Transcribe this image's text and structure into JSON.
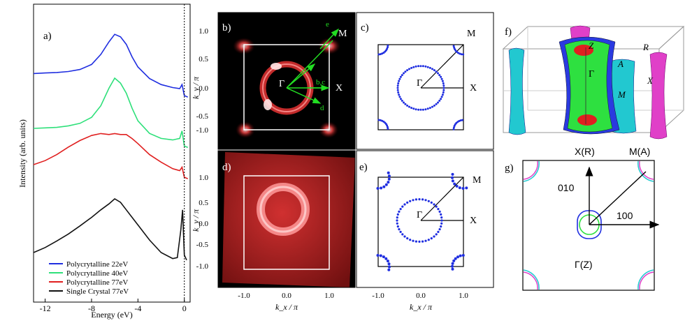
{
  "figure": {
    "panels": {
      "a": "a)",
      "b": "b)",
      "c": "c)",
      "d": "d)",
      "e": "e)",
      "f": "f)",
      "g": "g)"
    }
  },
  "chart_data": [
    {
      "type": "line",
      "panel": "a",
      "xlabel": "Energy (eV)",
      "ylabel": "Intensity (arb. units)",
      "xlim": [
        -13,
        0.5
      ],
      "xticks": [
        "-12",
        "-8",
        "-4",
        "0"
      ],
      "xtick_values": [
        -12,
        -8,
        -4,
        0
      ],
      "fermi_level": 0,
      "series": [
        {
          "name": "Polycrytalline 22eV",
          "color": "#1f2ee0",
          "offset": 3,
          "x": [
            -13,
            -12,
            -11,
            -10,
            -9,
            -8,
            -7.2,
            -6.5,
            -6.0,
            -5.5,
            -5.0,
            -4.5,
            -4.0,
            -3.0,
            -2.0,
            -1.0,
            -0.4,
            -0.2,
            0,
            0.3
          ],
          "y": [
            0.62,
            0.63,
            0.64,
            0.66,
            0.7,
            0.8,
            1.0,
            1.25,
            1.4,
            1.35,
            1.2,
            0.95,
            0.75,
            0.52,
            0.4,
            0.34,
            0.32,
            0.4,
            0.18,
            0.15
          ]
        },
        {
          "name": "Polycrytalline 40eV",
          "color": "#2ee07a",
          "offset": 2,
          "x": [
            -13,
            -12,
            -11,
            -10,
            -9,
            -8,
            -7.2,
            -6.5,
            -6.0,
            -5.5,
            -5.0,
            -4.5,
            -4.0,
            -3.0,
            -2.0,
            -1.0,
            -0.4,
            -0.2,
            0,
            0.3
          ],
          "y": [
            0.5,
            0.51,
            0.52,
            0.55,
            0.6,
            0.72,
            0.95,
            1.3,
            1.5,
            1.4,
            1.2,
            0.9,
            0.65,
            0.4,
            0.3,
            0.27,
            0.3,
            0.45,
            0.15,
            0.12
          ]
        },
        {
          "name": "Polycrytalline 77eV",
          "color": "#e01f1f",
          "offset": 1,
          "x": [
            -13,
            -12,
            -11,
            -10,
            -9,
            -8,
            -7.2,
            -6.5,
            -6.0,
            -5.5,
            -5.0,
            -4.5,
            -4.0,
            -3.0,
            -2.0,
            -1.0,
            -0.4,
            -0.2,
            0,
            0.3
          ],
          "y": [
            0.5,
            0.58,
            0.7,
            0.85,
            0.98,
            1.08,
            1.12,
            1.1,
            1.12,
            1.1,
            1.1,
            1.02,
            0.92,
            0.7,
            0.55,
            0.42,
            0.38,
            0.45,
            0.25,
            0.22
          ]
        },
        {
          "name": "Single Crystal 77eV",
          "color": "#111111",
          "offset": 0,
          "x": [
            -13,
            -12,
            -11,
            -10,
            -9,
            -8,
            -7.2,
            -6.5,
            -6.0,
            -5.5,
            -5.0,
            -4.5,
            -4.0,
            -3.0,
            -2.0,
            -1.0,
            -0.6,
            -0.3,
            -0.15,
            0,
            0.2
          ],
          "y": [
            0.25,
            0.35,
            0.48,
            0.62,
            0.78,
            0.95,
            1.1,
            1.22,
            1.32,
            1.25,
            1.1,
            0.95,
            0.8,
            0.5,
            0.25,
            0.13,
            0.15,
            0.7,
            1.1,
            0.2,
            0.1
          ]
        }
      ]
    },
    {
      "type": "heatmap",
      "panel": "b",
      "description_text": "Photoemission intensity map",
      "xlabel": "k_x / π",
      "ylabel": "k_y / π",
      "xticks": [
        "-1.0",
        "0.0",
        "1.0"
      ],
      "yticks": [
        "1.0",
        "0.5",
        "0.0",
        "-0.5",
        "-1.0"
      ],
      "xlim": [
        -1.4,
        1.4
      ],
      "ylim": [
        -1.3,
        1.3
      ],
      "labels": {
        "Gamma": "Γ",
        "X": "X",
        "M": "M",
        "bc": "b,c",
        "d": "d",
        "e": "e"
      }
    },
    {
      "type": "scatter",
      "panel": "c",
      "xlabel": "k_x / π",
      "xlim": [
        -1.4,
        1.4
      ],
      "ylim": [
        -1.3,
        1.3
      ],
      "labels": {
        "Gamma": "Γ",
        "X": "X",
        "M": "M"
      },
      "pocket_center": [
        0,
        0
      ],
      "pocket_radius": 0.42
    },
    {
      "type": "heatmap",
      "panel": "d",
      "xlabel": "k_x / π",
      "ylabel": "k_y / π",
      "xticks": [
        "-1.0",
        "0.0",
        "1.0"
      ],
      "yticks": [
        "1.0",
        "0.5",
        "0.0",
        "-0.5",
        "-1.0"
      ]
    },
    {
      "type": "scatter",
      "panel": "e",
      "xlabel": "k_x / π",
      "xticks": [
        "-1.0",
        "0.0",
        "1.0"
      ],
      "labels": {
        "Gamma": "Γ",
        "X": "X",
        "M": "M"
      }
    },
    {
      "type": "diagram",
      "panel": "f",
      "labels": {
        "Z": "Z",
        "R": "R",
        "A": "A",
        "Gamma": "Γ",
        "X": "X",
        "M": "M"
      }
    },
    {
      "type": "diagram",
      "panel": "g",
      "labels": {
        "XR": "X(R)",
        "MA": "M(A)",
        "dir010": "010",
        "dir100": "100",
        "GZ": "Γ(Z)"
      }
    }
  ]
}
